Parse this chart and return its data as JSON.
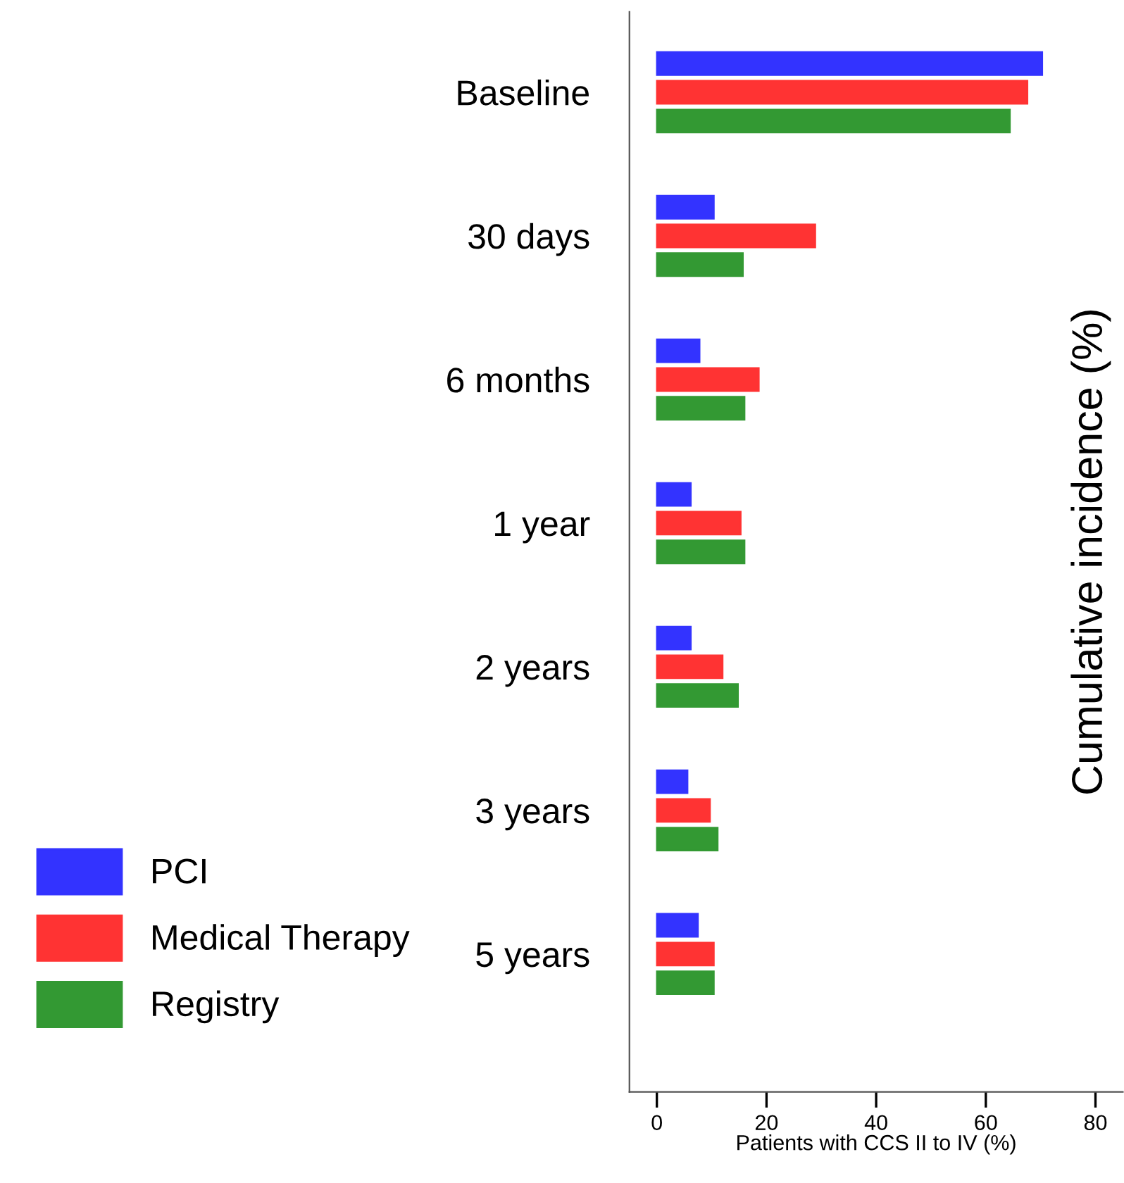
{
  "chart_data": {
    "type": "bar",
    "orientation": "horizontal",
    "xlabel": "Patients with CCS II to IV (%)",
    "ylabel": "Cumulative incidence (%)",
    "categories": [
      "Baseline",
      "30 days",
      "6 months",
      "1 year",
      "2 years",
      "3 years",
      "5 years"
    ],
    "series": [
      {
        "name": "PCI",
        "color": "#3333ff",
        "values": [
          70.3,
          10.4,
          7.8,
          6.2,
          6.2,
          5.6,
          7.5
        ]
      },
      {
        "name": "Medical Therapy",
        "color": "#ff3333",
        "values": [
          67.6,
          28.9,
          18.6,
          15.3,
          12.0,
          9.7,
          10.4
        ]
      },
      {
        "name": "Registry",
        "color": "#339933",
        "values": [
          64.4,
          15.7,
          16.0,
          16.0,
          14.8,
          11.1,
          10.4
        ]
      }
    ],
    "xlim": [
      -5,
      85
    ],
    "xticks": [
      0,
      20,
      40,
      60,
      80
    ],
    "grid": false,
    "legend": "bottom left"
  }
}
